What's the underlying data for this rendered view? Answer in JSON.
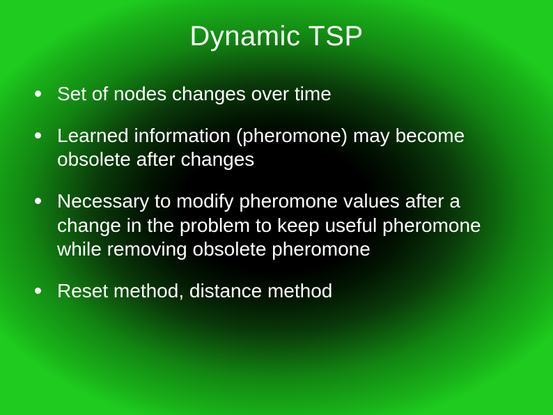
{
  "slide": {
    "title": "Dynamic TSP",
    "bullets": [
      "Set of nodes changes over time",
      "Learned information (pheromone) may become obsolete after changes",
      "Necessary to modify pheromone values after a change in the problem to keep useful pheromone while removing obsolete pheromone",
      "Reset method, distance method"
    ],
    "title_color": "#ffffff",
    "text_color": "#ffffff",
    "title_fontsize": 40,
    "body_fontsize": 28,
    "background": {
      "type": "radial-gradient",
      "center_color": "#000000",
      "edge_color": "#1ecb1e"
    }
  }
}
